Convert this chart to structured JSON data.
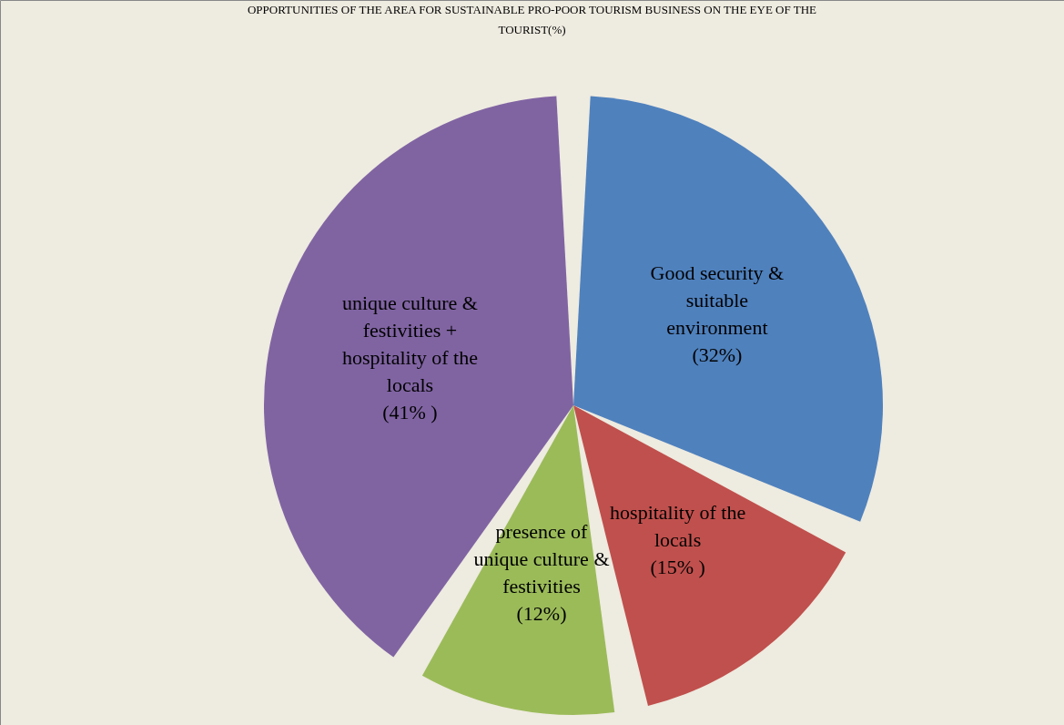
{
  "chart_data": {
    "type": "pie",
    "title": "OPPORTUNITIES OF THE AREA FOR SUSTAINABLE PRO-POOR TOURISM BUSINESS ON THE EYE OF THE TOURIST(%)",
    "categories": [
      "Good security & suitable environment",
      "hospitality of the locals",
      "presence  of unique culture & festivities",
      "unique culture & festivities + hospitality of the locals"
    ],
    "values": [
      32,
      15,
      12,
      41
    ],
    "colors": [
      "#4f81bd",
      "#c0504d",
      "#9bbb59",
      "#8064a2"
    ],
    "value_labels": [
      "(32%)",
      "(15% )",
      "(12%)",
      "(41%   )"
    ]
  }
}
